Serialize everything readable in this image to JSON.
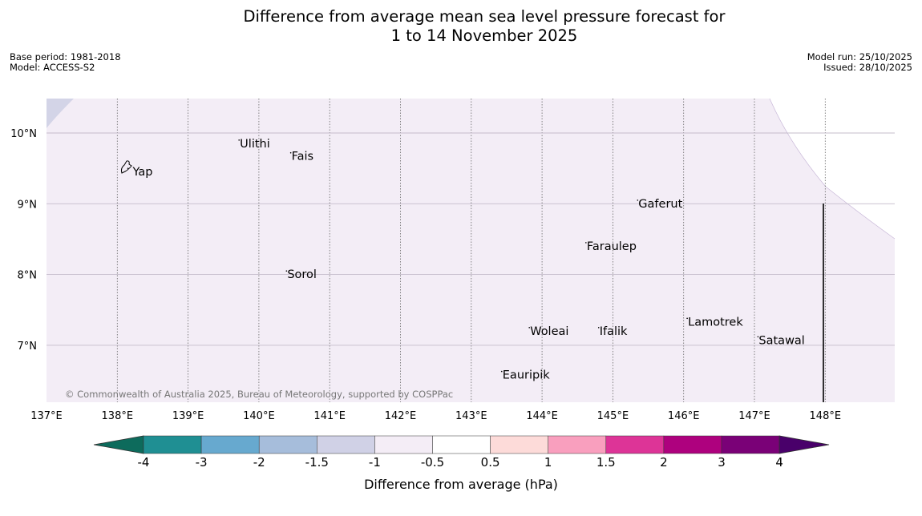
{
  "title_line1": "Difference from average mean sea level pressure forecast for",
  "title_line2": "1 to 14 November 2025",
  "meta_left": {
    "base_period": "Base period: 1981-2018",
    "model": "Model: ACCESS-S2"
  },
  "meta_right": {
    "model_run": "Model run: 25/10/2025",
    "issued": "Issued: 28/10/2025"
  },
  "copyright": "© Commonwealth of Australia 2025, Bureau of Meteorology, supported by COSPPac",
  "map": {
    "lon_ticks": [
      {
        "value": 137,
        "label": "137°E"
      },
      {
        "value": 138,
        "label": "138°E"
      },
      {
        "value": 139,
        "label": "139°E"
      },
      {
        "value": 140,
        "label": "140°E"
      },
      {
        "value": 141,
        "label": "141°E"
      },
      {
        "value": 142,
        "label": "142°E"
      },
      {
        "value": 143,
        "label": "143°E"
      },
      {
        "value": 144,
        "label": "144°E"
      },
      {
        "value": 145,
        "label": "145°E"
      },
      {
        "value": 146,
        "label": "146°E"
      },
      {
        "value": 147,
        "label": "147°E"
      },
      {
        "value": 148,
        "label": "148°E"
      }
    ],
    "lat_ticks": [
      {
        "value": 10,
        "label": "10°N"
      },
      {
        "value": 9,
        "label": "9°N"
      },
      {
        "value": 8,
        "label": "8°N"
      },
      {
        "value": 7,
        "label": "7°N"
      }
    ],
    "places": [
      {
        "name": "Yap",
        "lon": 138.15,
        "lat": 9.5
      },
      {
        "name": "Ulithi",
        "lon": 139.72,
        "lat": 9.9
      },
      {
        "name": "Fais",
        "lon": 140.45,
        "lat": 9.72
      },
      {
        "name": "Gaferut",
        "lon": 145.35,
        "lat": 9.05
      },
      {
        "name": "Faraulep",
        "lon": 144.62,
        "lat": 8.45
      },
      {
        "name": "Sorol",
        "lon": 140.39,
        "lat": 8.05
      },
      {
        "name": "Lamotrek",
        "lon": 146.05,
        "lat": 7.38
      },
      {
        "name": "Woleai",
        "lon": 143.82,
        "lat": 7.25
      },
      {
        "name": "Ifalik",
        "lon": 144.8,
        "lat": 7.25
      },
      {
        "name": "Satawal",
        "lon": 147.05,
        "lat": 7.12
      },
      {
        "name": "Eauripik",
        "lon": 143.43,
        "lat": 6.63
      }
    ]
  },
  "colorbar": {
    "label": "Difference from average (hPa)",
    "ticks": [
      "-4",
      "-3",
      "-2",
      "-1.5",
      "-1",
      "-0.5",
      "0.5",
      "1",
      "1.5",
      "2",
      "3",
      "4"
    ],
    "colors": [
      "#0d6b5c",
      "#1f8f93",
      "#67a9cf",
      "#a6bddb",
      "#d0d1e6",
      "#f4edf6",
      "#ffffff",
      "#fddbd9",
      "#f99fbe",
      "#dd3497",
      "#ae017e",
      "#7a0177",
      "#49006a"
    ]
  }
}
